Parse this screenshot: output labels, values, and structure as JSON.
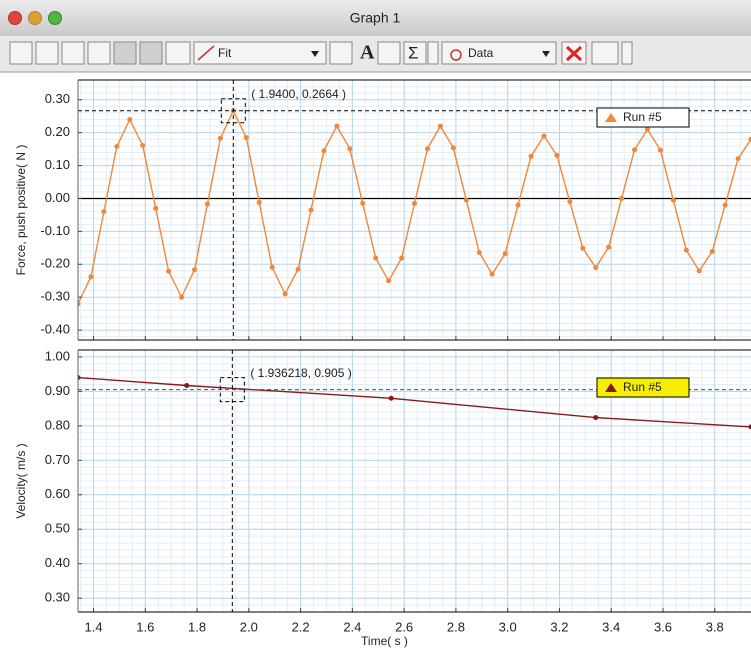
{
  "window": {
    "title": "Graph 1"
  },
  "toolbar": {
    "fit_label": "Fit",
    "data_label": "Data"
  },
  "chart_data": [
    {
      "type": "line",
      "ylabel": "Force, push positive( N )",
      "x": [
        1.34,
        1.39,
        1.44,
        1.49,
        1.54,
        1.59,
        1.64,
        1.69,
        1.74,
        1.79,
        1.84,
        1.89,
        1.94,
        1.99,
        2.04,
        2.09,
        2.14,
        2.19,
        2.24,
        2.29,
        2.34,
        2.39,
        2.44,
        2.49,
        2.54,
        2.59,
        2.64,
        2.69,
        2.74,
        2.79,
        2.84,
        2.89,
        2.94,
        2.99,
        3.04,
        3.09,
        3.14,
        3.19,
        3.24,
        3.29,
        3.34,
        3.39,
        3.44,
        3.49,
        3.54,
        3.59,
        3.64,
        3.69,
        3.74,
        3.79,
        3.84,
        3.89,
        3.94
      ],
      "series": [
        {
          "name": "Run #5",
          "color": "#f0883a",
          "values": [
            -0.32,
            -0.238,
            -0.04,
            0.158,
            0.24,
            0.161,
            -0.03,
            -0.221,
            -0.3,
            -0.217,
            -0.017,
            0.183,
            0.2664,
            0.185,
            -0.012,
            -0.209,
            -0.29,
            -0.215,
            -0.035,
            0.145,
            0.22,
            0.151,
            -0.015,
            -0.181,
            -0.25,
            -0.181,
            -0.015,
            0.151,
            0.22,
            0.154,
            -0.005,
            -0.164,
            -0.23,
            -0.168,
            -0.02,
            0.128,
            0.19,
            0.131,
            -0.01,
            -0.151,
            -0.21,
            -0.148,
            0,
            0.148,
            0.21,
            0.147,
            -0.005,
            -0.157,
            -0.22,
            -0.161,
            -0.02,
            0.121,
            0.18
          ]
        }
      ],
      "xlim": [
        1.34,
        3.94
      ],
      "ylim": [
        -0.43,
        0.36
      ],
      "xticks": [
        1.4,
        1.6,
        1.8,
        {
          "value": 2.0,
          "label": "2.0"
        },
        2.2,
        2.4,
        2.6,
        2.8,
        {
          "value": 3.0,
          "label": "3.0"
        },
        3.2,
        3.4,
        3.6,
        3.8
      ],
      "yticks": [
        {
          "value": 0.3,
          "label": "0.30"
        },
        {
          "value": 0.2,
          "label": "0.20"
        },
        {
          "value": 0.1,
          "label": "0.10"
        },
        {
          "value": 0,
          "label": "0.00"
        },
        {
          "value": -0.1,
          "label": "-0.10"
        },
        {
          "value": -0.2,
          "label": "-0.20"
        },
        {
          "value": -0.3,
          "label": "-0.30"
        },
        {
          "value": -0.4,
          "label": "-0.40"
        }
      ],
      "grid": true,
      "markers": true,
      "cursor": {
        "x": 1.94,
        "y": 0.2664,
        "label": "( 1.9400, 0.2664 )"
      },
      "legend": "upper right"
    },
    {
      "type": "line",
      "ylabel": "Velocity( m/s )",
      "xlabel": "Time( s )",
      "x": [
        1.34,
        1.76,
        2.55,
        3.34,
        3.94
      ],
      "series": [
        {
          "name": "Run #5",
          "color": "#8b1a1a",
          "values": [
            0.94,
            0.917,
            0.88,
            0.824,
            0.797
          ]
        }
      ],
      "xlim": [
        1.34,
        3.94
      ],
      "ylim": [
        0.26,
        1.02
      ],
      "xticks": [
        1.4,
        1.6,
        1.8,
        {
          "value": 2.0,
          "label": "2.0"
        },
        2.2,
        2.4,
        2.6,
        2.8,
        {
          "value": 3.0,
          "label": "3.0"
        },
        3.2,
        3.4,
        3.6,
        3.8
      ],
      "yticks": [
        {
          "value": 1.0,
          "label": "1.00"
        },
        {
          "value": 0.9,
          "label": "0.90"
        },
        {
          "value": 0.8,
          "label": "0.80"
        },
        {
          "value": 0.7,
          "label": "0.70"
        },
        {
          "value": 0.6,
          "label": "0.60"
        },
        {
          "value": 0.5,
          "label": "0.50"
        },
        {
          "value": 0.4,
          "label": "0.40"
        },
        {
          "value": 0.3,
          "label": "0.30"
        }
      ],
      "grid": true,
      "markers": true,
      "cursor": {
        "x": 1.936218,
        "y": 0.905,
        "label": "( 1.936218, 0.905 )"
      },
      "legend": "upper right",
      "legend_highlight": "#f6f000"
    }
  ]
}
